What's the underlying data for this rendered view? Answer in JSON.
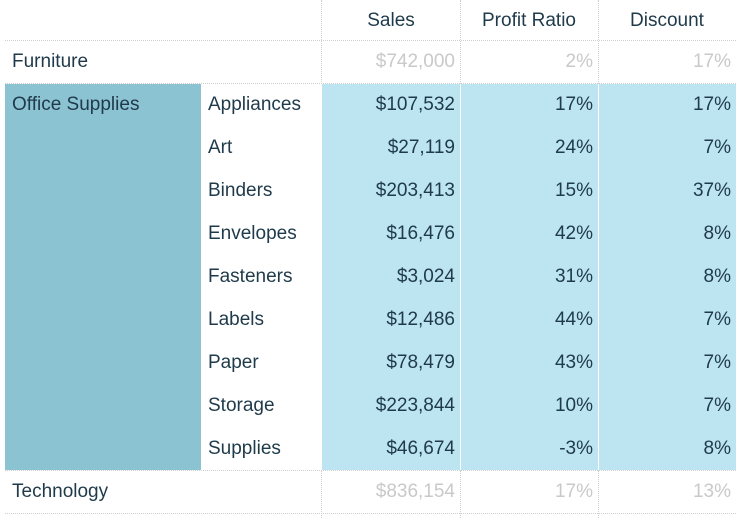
{
  "headers": {
    "sales": "Sales",
    "profit_ratio": "Profit Ratio",
    "discount": "Discount"
  },
  "furniture": {
    "category": "Furniture",
    "sales": "$742,000",
    "profit_ratio": "2%",
    "discount": "17%"
  },
  "office_supplies": {
    "category": "Office Supplies",
    "rows": [
      {
        "sub": "Appliances",
        "sales": "$107,532",
        "profit_ratio": "17%",
        "discount": "17%"
      },
      {
        "sub": "Art",
        "sales": "$27,119",
        "profit_ratio": "24%",
        "discount": "7%"
      },
      {
        "sub": "Binders",
        "sales": "$203,413",
        "profit_ratio": "15%",
        "discount": "37%"
      },
      {
        "sub": "Envelopes",
        "sales": "$16,476",
        "profit_ratio": "42%",
        "discount": "8%"
      },
      {
        "sub": "Fasteners",
        "sales": "$3,024",
        "profit_ratio": "31%",
        "discount": "8%"
      },
      {
        "sub": "Labels",
        "sales": "$12,486",
        "profit_ratio": "44%",
        "discount": "7%"
      },
      {
        "sub": "Paper",
        "sales": "$78,479",
        "profit_ratio": "43%",
        "discount": "7%"
      },
      {
        "sub": "Storage",
        "sales": "$223,844",
        "profit_ratio": "10%",
        "discount": "7%"
      },
      {
        "sub": "Supplies",
        "sales": "$46,674",
        "profit_ratio": "-3%",
        "discount": "8%"
      }
    ]
  },
  "technology": {
    "category": "Technology",
    "sales": "$836,154",
    "profit_ratio": "17%",
    "discount": "13%"
  },
  "colors": {
    "category_highlight": "#8bc3d3",
    "value_highlight": "#bde4f1",
    "text": "#1f3a4a",
    "muted_text": "#c9c9c9"
  }
}
